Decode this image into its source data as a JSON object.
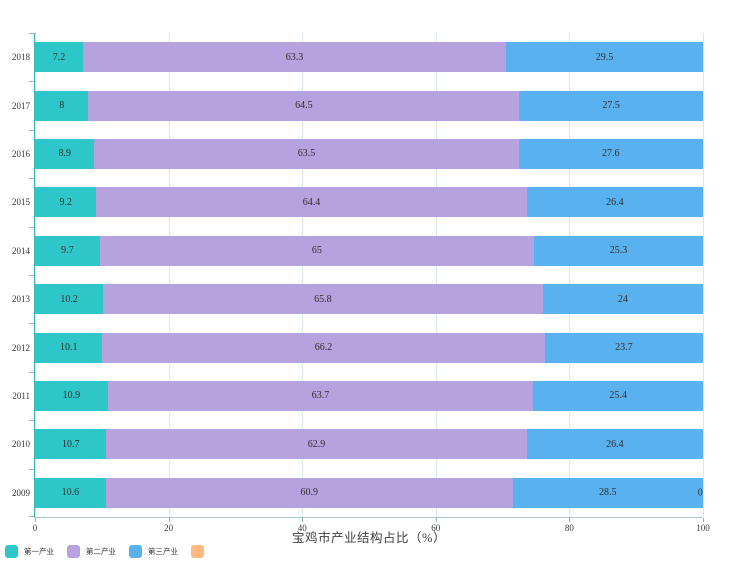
{
  "chart_data": {
    "type": "bar",
    "orientation": "horizontal",
    "stacked": true,
    "title": "宝鸡市产业结构占比（%）",
    "categories": [
      "2018",
      "2017",
      "2016",
      "2015",
      "2014",
      "2013",
      "2012",
      "2011",
      "2010",
      "2009"
    ],
    "series": [
      {
        "name": "第一产业",
        "color": "#2ec7c9",
        "values": [
          7.2,
          8,
          8.9,
          9.2,
          9.7,
          10.2,
          10.1,
          10.9,
          10.7,
          10.6
        ]
      },
      {
        "name": "第二产业",
        "color": "#b6a2de",
        "values": [
          63.3,
          64.5,
          63.5,
          64.4,
          65,
          65.8,
          66.2,
          63.7,
          62.9,
          60.9
        ]
      },
      {
        "name": "第三产业",
        "color": "#5ab1ef",
        "values": [
          29.5,
          27.5,
          27.6,
          26.4,
          25.3,
          24,
          23.7,
          25.4,
          26.4,
          28.5
        ]
      },
      {
        "name": "",
        "color": "#ffb980",
        "values": [
          null,
          null,
          null,
          null,
          null,
          null,
          null,
          null,
          null,
          0
        ]
      }
    ],
    "xlim": [
      0,
      100
    ],
    "x_ticks": [
      0,
      20,
      40,
      60,
      80,
      100
    ],
    "grid": true,
    "legend_position": "bottom-left",
    "label_color": "#333333",
    "axis_color": "#3cb3b5",
    "gridline_color": "#d6e8e9"
  }
}
